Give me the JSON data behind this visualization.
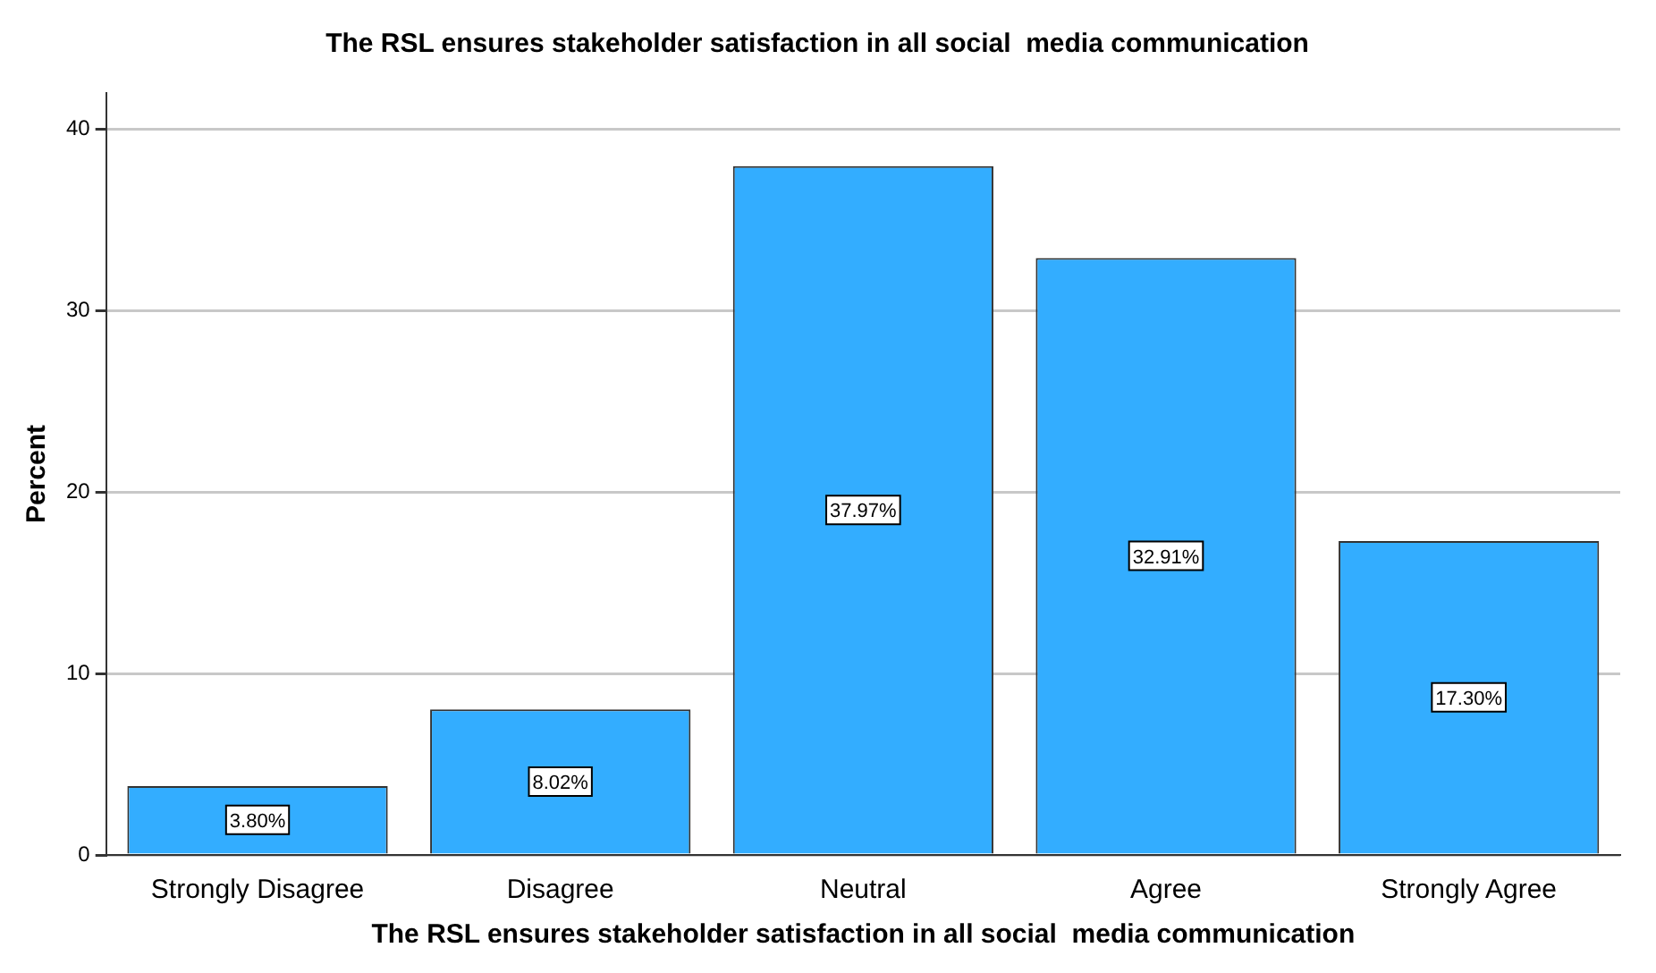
{
  "chart_data": {
    "type": "bar",
    "title": "The RSL ensures stakeholder satisfaction in all social  media communication",
    "xlabel": "The RSL ensures stakeholder satisfaction in all social  media communication",
    "ylabel": "Percent",
    "categories": [
      "Strongly Disagree",
      "Disagree",
      "Neutral",
      "Agree",
      "Strongly Agree"
    ],
    "values": [
      3.8,
      8.02,
      37.97,
      32.91,
      17.3
    ],
    "value_labels": [
      "3.80%",
      "8.02%",
      "37.97%",
      "32.91%",
      "17.30%"
    ],
    "color": "#33adff",
    "ylim": [
      0,
      42
    ],
    "yticks": [
      0,
      10,
      20,
      30,
      40
    ],
    "grid": "y"
  }
}
